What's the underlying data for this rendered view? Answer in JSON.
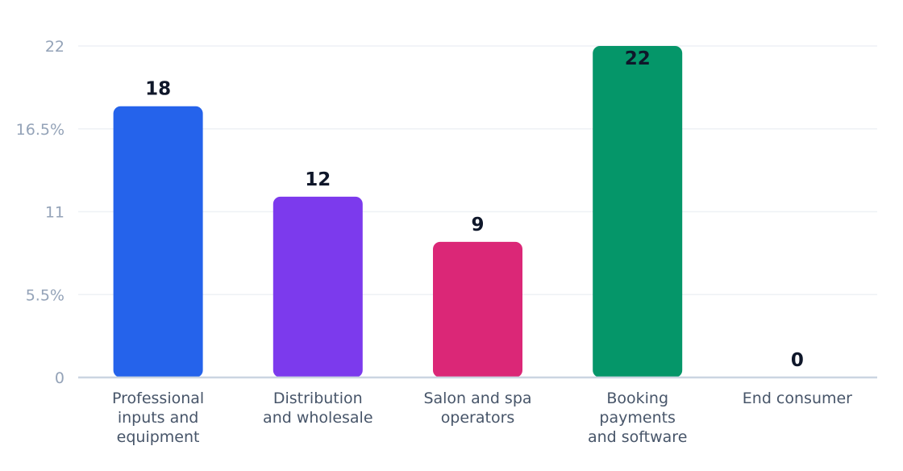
{
  "chart_data": {
    "type": "bar",
    "categories": [
      [
        "Professional",
        "inputs and",
        "equipment"
      ],
      [
        "Distribution",
        "and wholesale"
      ],
      [
        "Salon and spa",
        "operators"
      ],
      [
        "Booking",
        "payments",
        "and software"
      ],
      [
        "End consumer"
      ]
    ],
    "values": [
      18,
      12,
      9,
      22,
      0
    ],
    "value_labels": [
      "18",
      "12",
      "9",
      "22",
      "0"
    ],
    "colors": [
      "#2563eb",
      "#7c3aed",
      "#db2777",
      "#059669",
      "#d97706"
    ],
    "yticks": [
      {
        "value": 0,
        "label": "0"
      },
      {
        "value": 5.5,
        "label": "5.5%"
      },
      {
        "value": 11,
        "label": "11"
      },
      {
        "value": 16.5,
        "label": "16.5%"
      },
      {
        "value": 22,
        "label": "22"
      }
    ],
    "ylim": [
      0,
      22
    ],
    "grid": true,
    "title": "",
    "xlabel": "",
    "ylabel": ""
  }
}
